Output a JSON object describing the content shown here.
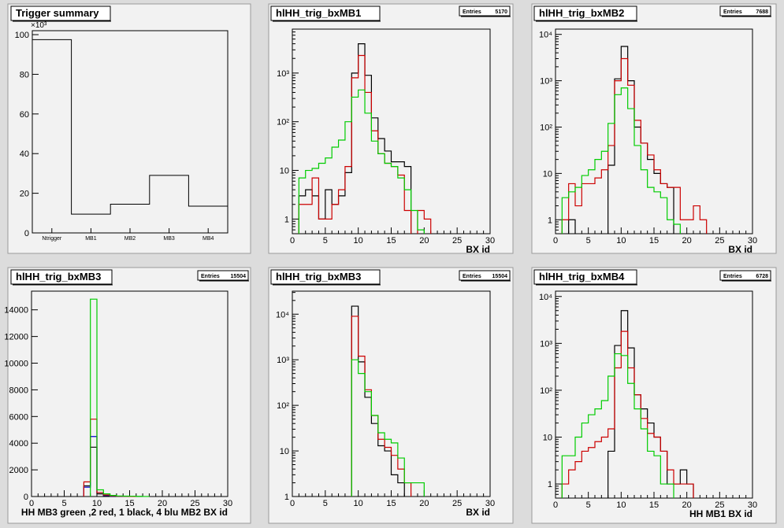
{
  "colors": {
    "black": "#000000",
    "red": "#cc0000",
    "green": "#00cc00",
    "blue": "#0000cc",
    "frame": "#f2f2f2"
  },
  "pads": [
    {
      "id": "summary",
      "title": "Trigger summary",
      "stats": null,
      "chart_data": {
        "type": "bar",
        "yscale": "linear",
        "categories": [
          "Ntrigger",
          "MB1",
          "MB2",
          "MB3",
          "MB4"
        ],
        "values": [
          97.5,
          9.5,
          14.5,
          29,
          13.5
        ],
        "ylim": [
          0,
          102
        ],
        "yticks": [
          0,
          20,
          40,
          60,
          80,
          100
        ],
        "yexp": "×10³",
        "xlabel": ""
      }
    },
    {
      "id": "mb1",
      "title": "hlHH_trig_bxMB1",
      "stats": {
        "label": "Entries",
        "value": "5170"
      },
      "chart_data": {
        "type": "line",
        "yscale": "log",
        "xlim": [
          0,
          30
        ],
        "ylim": [
          0.5,
          8000
        ],
        "xticks": [
          0,
          5,
          10,
          15,
          20,
          25,
          30
        ],
        "yticks": [
          {
            "v": 1,
            "t": "1"
          },
          {
            "v": 10,
            "t": "10"
          },
          {
            "v": 100,
            "t": "10²"
          },
          {
            "v": 1000,
            "t": "10³"
          }
        ],
        "xlabel": "BX id",
        "series": [
          {
            "color": "black",
            "values": [
              0,
              3,
              4,
              3,
              1,
              4,
              2,
              3,
              9,
              1000,
              4000,
              900,
              120,
              45,
              25,
              15,
              15,
              12,
              0,
              0,
              0,
              0,
              0,
              0,
              0,
              0,
              0,
              0,
              0,
              0
            ]
          },
          {
            "color": "red",
            "values": [
              0,
              2,
              2,
              7,
              1,
              1,
              2,
              4,
              12,
              800,
              2300,
              400,
              65,
              22,
              14,
              12,
              8,
              1.5,
              0,
              1.5,
              1,
              0,
              0,
              0,
              0,
              0,
              0,
              0,
              0,
              0
            ]
          },
          {
            "color": "green",
            "values": [
              0,
              7,
              10,
              11,
              14,
              18,
              30,
              42,
              100,
              320,
              450,
              150,
              40,
              22,
              14,
              12,
              7,
              4,
              1.5,
              0.6,
              0,
              0,
              0,
              0,
              0,
              0,
              0,
              0,
              0,
              0
            ]
          }
        ]
      }
    },
    {
      "id": "mb2",
      "title": "hlHH_trig_bxMB2",
      "stats": {
        "label": "Entries",
        "value": "7688"
      },
      "chart_data": {
        "type": "line",
        "yscale": "log",
        "xlim": [
          0,
          30
        ],
        "ylim": [
          0.5,
          13000
        ],
        "xticks": [
          0,
          5,
          10,
          15,
          20,
          25,
          30
        ],
        "yticks": [
          {
            "v": 1,
            "t": "1"
          },
          {
            "v": 10,
            "t": "10"
          },
          {
            "v": 100,
            "t": "10²"
          },
          {
            "v": 1000,
            "t": "10³"
          },
          {
            "v": 10000,
            "t": "10⁴"
          }
        ],
        "xlabel": "BX id",
        "series": [
          {
            "color": "black",
            "values": [
              0,
              0,
              1,
              0,
              0,
              0,
              0,
              0,
              15,
              1100,
              5500,
              1000,
              100,
              45,
              20,
              10,
              6,
              5,
              0,
              0,
              0,
              0,
              0,
              0,
              0,
              0,
              0,
              0,
              0,
              0
            ]
          },
          {
            "color": "red",
            "values": [
              0,
              1,
              6,
              2,
              6,
              6,
              8,
              12,
              40,
              1000,
              3000,
              800,
              140,
              45,
              25,
              12,
              6,
              5,
              5,
              1,
              1,
              2,
              1,
              0,
              0,
              0,
              0,
              0,
              0,
              0
            ]
          },
          {
            "color": "green",
            "values": [
              0,
              3,
              4,
              5,
              9,
              12,
              20,
              30,
              120,
              500,
              700,
              250,
              40,
              12,
              5,
              4,
              3,
              1,
              0.8,
              0,
              0,
              0,
              0,
              0,
              0,
              0,
              0,
              0,
              0,
              0
            ]
          }
        ]
      }
    },
    {
      "id": "mb3lin",
      "title": "hlHH_trig_bxMB3",
      "stats": {
        "label": "Entries",
        "value": "15504"
      },
      "chart_data": {
        "type": "line",
        "yscale": "linear",
        "xlim": [
          0,
          30
        ],
        "ylim": [
          0,
          15400
        ],
        "xticks": [
          0,
          5,
          10,
          15,
          20,
          25,
          30
        ],
        "yticks": [
          {
            "v": 0,
            "t": "0"
          },
          {
            "v": 2000,
            "t": "2000"
          },
          {
            "v": 4000,
            "t": "4000"
          },
          {
            "v": 6000,
            "t": "6000"
          },
          {
            "v": 8000,
            "t": "8000"
          },
          {
            "v": 10000,
            "t": "10000"
          },
          {
            "v": 12000,
            "t": "12000"
          },
          {
            "v": 14000,
            "t": "14000"
          }
        ],
        "xlabel": "HH  MB3 green ,2 red, 1 black, 4 blu    MB2 BX id",
        "series": [
          {
            "color": "black",
            "values": [
              0,
              0,
              0,
              0,
              0,
              0,
              0,
              0,
              800,
              3700,
              200,
              60,
              25,
              10,
              5,
              0,
              0,
              0,
              0,
              0,
              0,
              0,
              0,
              0,
              0,
              0,
              0,
              0,
              0,
              0
            ]
          },
          {
            "color": "blue",
            "values": [
              0,
              0,
              0,
              0,
              0,
              0,
              0,
              0,
              700,
              4500,
              300,
              80,
              30,
              12,
              5,
              0,
              0,
              0,
              0,
              0,
              0,
              0,
              0,
              0,
              0,
              0,
              0,
              0,
              0,
              0
            ]
          },
          {
            "color": "red",
            "values": [
              0,
              0,
              0,
              0,
              0,
              0,
              0,
              0,
              1100,
              5800,
              300,
              120,
              50,
              20,
              10,
              5,
              0,
              0,
              0,
              0,
              0,
              0,
              0,
              0,
              0,
              0,
              0,
              0,
              0,
              0
            ]
          },
          {
            "color": "green",
            "values": [
              0,
              0,
              0,
              0,
              0,
              0,
              0,
              0,
              0,
              14800,
              500,
              200,
              80,
              40,
              30,
              25,
              15,
              5,
              0,
              0,
              0,
              0,
              0,
              0,
              0,
              0,
              0,
              0,
              0,
              0
            ]
          }
        ]
      }
    },
    {
      "id": "mb3log",
      "title": "hlHH_trig_bxMB3",
      "stats": {
        "label": "Entries",
        "value": "15504"
      },
      "chart_data": {
        "type": "line",
        "yscale": "log",
        "xlim": [
          0,
          30
        ],
        "ylim": [
          1,
          32000
        ],
        "xticks": [
          0,
          5,
          10,
          15,
          20,
          25,
          30
        ],
        "yticks": [
          {
            "v": 1,
            "t": "1"
          },
          {
            "v": 10,
            "t": "10"
          },
          {
            "v": 100,
            "t": "10²"
          },
          {
            "v": 1000,
            "t": "10³"
          },
          {
            "v": 10000,
            "t": "10⁴"
          }
        ],
        "xlabel": "BX id",
        "series": [
          {
            "color": "black",
            "values": [
              0,
              0,
              0,
              0,
              0,
              0,
              0,
              0,
              0,
              15000,
              900,
              150,
              40,
              13,
              10,
              3,
              2,
              1,
              0,
              0,
              0,
              0,
              0,
              0,
              0,
              0,
              0,
              0,
              0,
              0
            ]
          },
          {
            "color": "red",
            "values": [
              0,
              0,
              0,
              0,
              0,
              0,
              0,
              0,
              0,
              9000,
              1200,
              220,
              60,
              18,
              12,
              8,
              4,
              2,
              1,
              0,
              0,
              0,
              0,
              0,
              0,
              0,
              0,
              0,
              0,
              0
            ]
          },
          {
            "color": "green",
            "values": [
              0,
              0,
              0,
              0,
              0,
              0,
              0,
              0,
              0,
              1000,
              500,
              200,
              60,
              25,
              18,
              15,
              7,
              2,
              2,
              2,
              0,
              0,
              0,
              0,
              0,
              0,
              0,
              0,
              0,
              0
            ]
          }
        ]
      }
    },
    {
      "id": "mb4",
      "title": "hlHH_trig_bxMB4",
      "stats": {
        "label": "Entries",
        "value": "6728"
      },
      "chart_data": {
        "type": "line",
        "yscale": "log",
        "xlim": [
          0,
          30
        ],
        "ylim": [
          0.5,
          13000
        ],
        "xticks": [
          0,
          5,
          10,
          15,
          20,
          25,
          30
        ],
        "yticks": [
          {
            "v": 1,
            "t": "1"
          },
          {
            "v": 10,
            "t": "10"
          },
          {
            "v": 100,
            "t": "10²"
          },
          {
            "v": 1000,
            "t": "10³"
          },
          {
            "v": 10000,
            "t": "10⁴"
          }
        ],
        "xlabel": "HH MB1 BX id",
        "series": [
          {
            "color": "black",
            "values": [
              0,
              0,
              0,
              0,
              0,
              0,
              0,
              0,
              5,
              900,
              5000,
              800,
              80,
              40,
              20,
              10,
              5,
              1,
              1,
              2,
              1,
              0,
              0,
              0,
              0,
              0,
              0,
              0,
              0,
              0
            ]
          },
          {
            "color": "red",
            "values": [
              0,
              1,
              2,
              3,
              5,
              6,
              8,
              10,
              15,
              300,
              1800,
              300,
              80,
              25,
              12,
              10,
              5,
              2,
              1,
              1,
              1,
              0,
              0,
              0,
              0,
              0,
              0,
              0,
              0,
              0
            ]
          },
          {
            "color": "green",
            "values": [
              0,
              4,
              4,
              10,
              20,
              30,
              40,
              60,
              200,
              600,
              550,
              140,
              40,
              15,
              5,
              4,
              1,
              1,
              0.5,
              0,
              0,
              0,
              0,
              0,
              0,
              0,
              0,
              0,
              0,
              0
            ]
          }
        ]
      }
    }
  ]
}
